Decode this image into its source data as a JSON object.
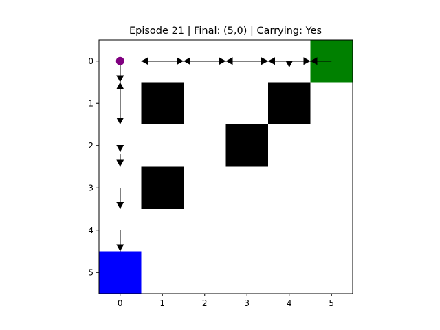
{
  "chart_data": {
    "type": "heatmap",
    "title": "Episode 21 | Final: (5,0) | Carrying: Yes",
    "grid_size": [
      6,
      6
    ],
    "xlim": [
      -0.5,
      5.5
    ],
    "ylim": [
      5.5,
      -0.5
    ],
    "x_ticks": [
      0,
      1,
      2,
      3,
      4,
      5
    ],
    "y_ticks": [
      0,
      1,
      2,
      3,
      4,
      5
    ],
    "grid": false,
    "cells": [
      {
        "name": "obstacle",
        "row": 1,
        "col": 1,
        "color": "#000000"
      },
      {
        "name": "obstacle",
        "row": 1,
        "col": 4,
        "color": "#000000"
      },
      {
        "name": "obstacle",
        "row": 2,
        "col": 3,
        "color": "#000000"
      },
      {
        "name": "obstacle",
        "row": 3,
        "col": 1,
        "color": "#000000"
      },
      {
        "name": "goal",
        "row": 0,
        "col": 5,
        "color": "#008000"
      },
      {
        "name": "drop-off",
        "row": 5,
        "col": 0,
        "color": "#0000ff"
      }
    ],
    "agent": {
      "row": 0,
      "col": 0,
      "color": "#800080"
    },
    "arrows": [
      {
        "from": [
          0,
          0
        ],
        "to": [
          0,
          0.5
        ]
      },
      {
        "from": [
          0.5,
          0
        ],
        "to": [
          1.5,
          0
        ],
        "both": true
      },
      {
        "from": [
          1.5,
          0
        ],
        "to": [
          2.5,
          0
        ],
        "both": true
      },
      {
        "from": [
          2.5,
          0
        ],
        "to": [
          3.5,
          0
        ],
        "both": true
      },
      {
        "from": [
          3.5,
          0
        ],
        "to": [
          4.5,
          0
        ],
        "both": true
      },
      {
        "from": [
          4,
          0
        ],
        "to": [
          4,
          0.15
        ]
      },
      {
        "from": [
          5.0,
          0
        ],
        "to": [
          4.5,
          0
        ]
      },
      {
        "from": [
          0,
          0
        ],
        "to": [
          0,
          0.5
        ]
      },
      {
        "from": [
          0,
          0.5
        ],
        "to": [
          0,
          1.5
        ],
        "both": true
      },
      {
        "from": [
          0,
          2.0
        ],
        "to": [
          0,
          2.15
        ],
        "flip": true
      },
      {
        "from": [
          0,
          2.2
        ],
        "to": [
          0,
          2.5
        ]
      },
      {
        "from": [
          0,
          3.0
        ],
        "to": [
          0,
          3.5
        ]
      },
      {
        "from": [
          0,
          4.0
        ],
        "to": [
          0,
          4.5
        ]
      }
    ]
  }
}
